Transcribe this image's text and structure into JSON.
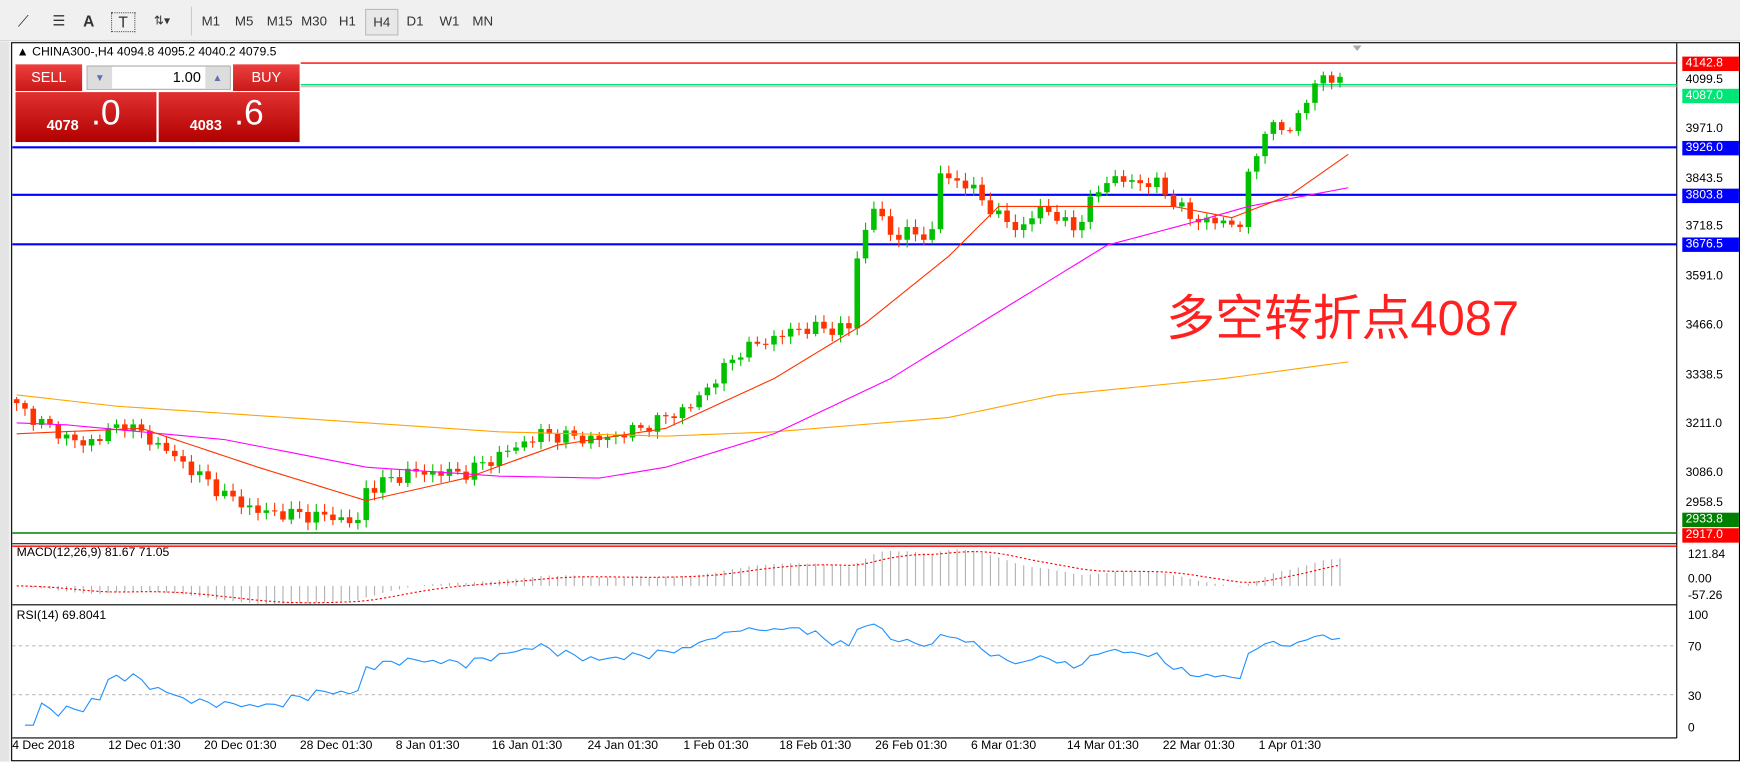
{
  "toolbar": {
    "icons": [
      "chart-objects-icon",
      "fibonacci-icon",
      "text-icon",
      "text-label-icon",
      "arrows-icon"
    ],
    "text_tool": "A",
    "label_tool": "T",
    "timeframes": [
      "M1",
      "M5",
      "M15",
      "M30",
      "H1",
      "H4",
      "D1",
      "W1",
      "MN"
    ],
    "selected": "H4"
  },
  "chart": {
    "header": "CHINA300-,H4  4094.8 4095.2 4040.2 4079.5",
    "annotation": "多空转折点4087",
    "colors": {
      "bull": "#00c000",
      "bear": "#ff3300",
      "ma_fast": "#ff3300",
      "ma_mid": "#ff00ff",
      "ma_slow": "#ffa500",
      "level": "#0000ff",
      "annotation": "#ff2020"
    }
  },
  "trade": {
    "sell": "SELL",
    "buy": "BUY",
    "lot": "1.00",
    "sell_price_int": "4078",
    "sell_price_dec": ".0",
    "buy_price_int": "4083",
    "buy_price_dec": ".6"
  },
  "price_axis": {
    "ticks": [
      "3971.0",
      "3843.5",
      "3718.5",
      "3591.0",
      "3466.0",
      "3338.5",
      "3211.0",
      "3086.0",
      "2958.5"
    ],
    "labels": [
      {
        "text": "4142.8",
        "color": "#ff0000"
      },
      {
        "text": "4087.0",
        "color": "#00e676"
      },
      {
        "text": "3926.0",
        "color": "#0000ff"
      },
      {
        "text": "3803.8",
        "color": "#0000ff"
      },
      {
        "text": "3676.5",
        "color": "#0000ff"
      },
      {
        "text": "2933.8",
        "color": "#008000"
      },
      {
        "text": "2917.0",
        "color": "#ff0000"
      }
    ],
    "hidden_tick": "4099.5"
  },
  "macd": {
    "label": "MACD(12,26,9) 81.67 71.05",
    "ticks": [
      "121.84",
      "0.00",
      "-57.26"
    ]
  },
  "rsi": {
    "label": "RSI(14) 69.8041",
    "ticks": [
      "100",
      "70",
      "30",
      "0"
    ]
  },
  "time_axis": [
    "4 Dec 2018",
    "12 Dec 01:30",
    "20 Dec 01:30",
    "28 Dec 01:30",
    "8 Jan 01:30",
    "16 Jan 01:30",
    "24 Jan 01:30",
    "1 Feb 01:30",
    "18 Feb 01:30",
    "26 Feb 01:30",
    "6 Mar 01:30",
    "14 Mar 01:30",
    "22 Mar 01:30",
    "1 Apr 01:30"
  ],
  "chart_data": {
    "type": "candlestick",
    "bars": 160,
    "close_keypoints": [
      [
        0,
        3260
      ],
      [
        4,
        3203
      ],
      [
        8,
        3160
      ],
      [
        13,
        3217
      ],
      [
        18,
        3146
      ],
      [
        25,
        3032
      ],
      [
        29,
        2989
      ],
      [
        38,
        2975
      ],
      [
        41,
        2960
      ],
      [
        42,
        3046
      ],
      [
        47,
        3089
      ],
      [
        54,
        3089
      ],
      [
        63,
        3189
      ],
      [
        70,
        3174
      ],
      [
        75,
        3203
      ],
      [
        81,
        3260
      ],
      [
        87,
        3403
      ],
      [
        94,
        3460
      ],
      [
        100,
        3460
      ],
      [
        101,
        3646
      ],
      [
        103,
        3774
      ],
      [
        105,
        3703
      ],
      [
        110,
        3703
      ],
      [
        111,
        3860
      ],
      [
        115,
        3817
      ],
      [
        118,
        3745
      ],
      [
        121,
        3717
      ],
      [
        123,
        3774
      ],
      [
        127,
        3717
      ],
      [
        131,
        3845
      ],
      [
        137,
        3831
      ],
      [
        141,
        3745
      ],
      [
        145,
        3731
      ],
      [
        147,
        3731
      ],
      [
        148,
        3845
      ],
      [
        150,
        3974
      ],
      [
        153,
        3974
      ],
      [
        155,
        4045
      ],
      [
        157,
        4117
      ],
      [
        159,
        4088
      ]
    ],
    "ma_fast": [
      [
        0,
        3189
      ],
      [
        15,
        3203
      ],
      [
        29,
        3103
      ],
      [
        42,
        3017
      ],
      [
        54,
        3075
      ],
      [
        65,
        3160
      ],
      [
        78,
        3203
      ],
      [
        91,
        3331
      ],
      [
        102,
        3474
      ],
      [
        112,
        3646
      ],
      [
        118,
        3774
      ],
      [
        131,
        3774
      ],
      [
        139,
        3774
      ],
      [
        146,
        3745
      ],
      [
        153,
        3803
      ],
      [
        160,
        3908
      ]
    ],
    "ma_mid": [
      [
        0,
        3217
      ],
      [
        6,
        3212
      ],
      [
        25,
        3174
      ],
      [
        42,
        3103
      ],
      [
        58,
        3080
      ],
      [
        70,
        3075
      ],
      [
        78,
        3103
      ],
      [
        91,
        3189
      ],
      [
        105,
        3331
      ],
      [
        118,
        3503
      ],
      [
        131,
        3674
      ],
      [
        141,
        3731
      ],
      [
        148,
        3774
      ],
      [
        160,
        3822
      ]
    ],
    "ma_slow": [
      [
        0,
        3289
      ],
      [
        12,
        3260
      ],
      [
        38,
        3223
      ],
      [
        58,
        3194
      ],
      [
        78,
        3183
      ],
      [
        91,
        3194
      ],
      [
        112,
        3231
      ],
      [
        125,
        3289
      ],
      [
        145,
        3331
      ],
      [
        160,
        3374
      ]
    ],
    "levels": [
      4142.8,
      4087.0,
      3926.0,
      3803.8,
      3676.5,
      2933.8,
      2917.0
    ]
  }
}
